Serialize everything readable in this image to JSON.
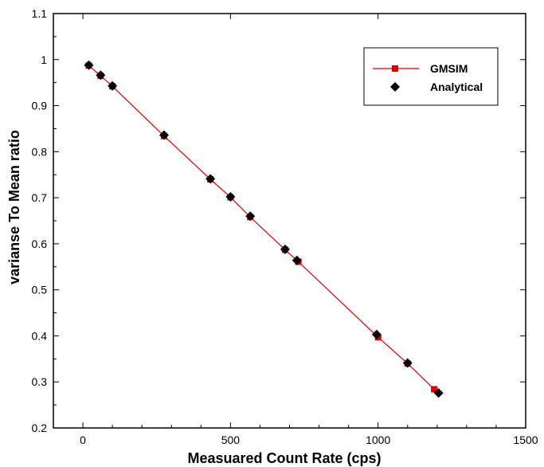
{
  "chart_data": {
    "type": "line",
    "title": "",
    "xlabel": "Measuared Count Rate (cps)",
    "ylabel": "varianse To Mean ratio",
    "xlim": [
      -100,
      1500
    ],
    "ylim": [
      0.2,
      1.1
    ],
    "x_ticks": [
      0,
      500,
      1000,
      1500
    ],
    "y_ticks": [
      0.2,
      0.3,
      0.4,
      0.5,
      0.6,
      0.7,
      0.8,
      0.9,
      1,
      1.1
    ],
    "grid": false,
    "legend_position": "top-right",
    "series": [
      {
        "name": "GMSIM",
        "marker": "square",
        "line": true,
        "color": "#d40000",
        "x": [
          20,
          60,
          100,
          275,
          432,
          500,
          567,
          685,
          730,
          1000,
          1100,
          1190
        ],
        "y": [
          0.987,
          0.965,
          0.942,
          0.834,
          0.74,
          0.701,
          0.658,
          0.587,
          0.561,
          0.397,
          0.34,
          0.284
        ]
      },
      {
        "name": "Analytical",
        "marker": "diamond",
        "line": false,
        "color": "#000000",
        "x": [
          20,
          60,
          100,
          275,
          432,
          500,
          567,
          685,
          725,
          995,
          1100,
          1205
        ],
        "y": [
          0.988,
          0.966,
          0.943,
          0.836,
          0.741,
          0.702,
          0.66,
          0.588,
          0.564,
          0.403,
          0.341,
          0.276
        ]
      }
    ]
  }
}
